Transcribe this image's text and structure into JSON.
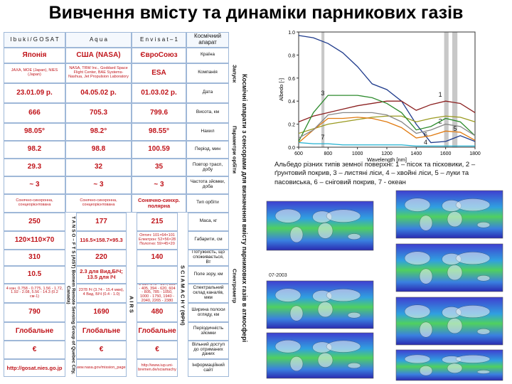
{
  "title": "Вивчення вмісту та динаміки парникових газів",
  "table": {
    "header": [
      "I b u k i / G O S A T",
      "A q u a",
      "E n v i s a t – 1",
      "Космічний апарат"
    ],
    "rows": [
      [
        "Японія",
        "США (NASA)",
        "ЄвроСоюз",
        "Країна"
      ],
      [
        "JAXA, MOE (Japan), NIES (Japan)",
        "NASA, TRW Inc., Goddard Space Flight Center, BAE Systems-Nashua, Jet Propulsion Laboratory",
        "ESA",
        "Компанія"
      ],
      [
        "23.01.09 р.",
        "04.05.02 р.",
        "01.03.02 р.",
        "Дата"
      ],
      [
        "666",
        "705.3",
        "799.6",
        "Висота, км"
      ],
      [
        "98.05°",
        "98.2°",
        "98.55°",
        "Нахил"
      ],
      [
        "98.2",
        "98.8",
        "100.59",
        "Період, мин"
      ],
      [
        "29.3",
        "32",
        "35",
        "Повтор трасп, добу"
      ],
      [
        "~ 3",
        "~ 3",
        "~ 3",
        "Частота зйомки, доба"
      ],
      [
        "Сонячно-синхронна, сонцеорієнтована",
        "Сонячно-синхронна, сонцеорієнтована",
        "Сонячно-синхр. полярна",
        "Тип орбіти"
      ],
      [
        "250",
        "177",
        "215",
        "Маса, кг"
      ],
      [
        "120×110×70",
        "116.5×158.7×95.3",
        "Оптич: 101×64×101 Електрон: 52×56×28 Полотно: 59×45×20",
        "Габарити, см"
      ],
      [
        "310",
        "220",
        "140",
        "Потужність, що споживається, Вт"
      ],
      [
        "10.5",
        "2.3 для Вид,БІЧ; 13.5 для ІЧ",
        "",
        "Поле зору, км"
      ],
      [
        "4 кан. 0.758 - 0.775, 1.56 - 1.72, 1.92 - 2.08, 5.56 - 14.3 (0.2 см-1)",
        "2378 ІЧ (3.74 - 15.4 мкм), 4 Вид, БІЧ (0.4 - 1.0)",
        "8 кан. 240 - 314, 309 - 405, 394 - 620, 604 - 805, 785 - 1050, 1000 - 1750, 1940 - 2040, 2265 - 2380",
        "Спектральний склад каналів, мкм"
      ],
      [
        "790",
        "1690",
        "480",
        "Ширина полоси огляду, км"
      ],
      [
        "Глобальне",
        "Глобальне",
        "Глобальне",
        "Періодичність зйомки"
      ],
      [
        "€",
        "€",
        "€",
        "Вільний доступ до отриманих даних"
      ],
      [
        "http://gosat.nies.go.jp",
        "http://www.nasa.gov/mission_pages/aqua",
        "http://www.iup.uni-bremen.de/sciamachy",
        "Інформаційний сайт"
      ]
    ]
  },
  "side_labels": {
    "main": "Космічні апарати з сенсорами для визначення вмісту парникових газів в атмосфері",
    "launch": "Запуск",
    "orbit": "Параметри орбіти",
    "spectrometer": "Спектрометр"
  },
  "instruments": [
    "T A N S O – F T S (AIST) Bomem Remote Sensing Group of Quebec City, Canada)",
    "A I R S",
    "S C I A M A C H Y (ФРН)"
  ],
  "chart_data": {
    "type": "line",
    "xlabel": "Wavelength [nm]",
    "ylabel": "Albedo [-]",
    "xlim": [
      600,
      1800
    ],
    "ylim": [
      0,
      1
    ],
    "xticks": [
      600,
      800,
      1000,
      1200,
      1400,
      1600,
      1800
    ],
    "yticks": [
      {
        "value": 0,
        "label": "0.0"
      },
      {
        "value": 0.2,
        "label": "0.2"
      },
      {
        "value": 0.4,
        "label": "0.4"
      },
      {
        "value": 0.6,
        "label": "0.6"
      },
      {
        "value": 0.8,
        "label": "0.8"
      },
      {
        "value": 1,
        "label": "1.0"
      }
    ],
    "bands": [
      [
        755,
        775
      ],
      [
        1590,
        1620
      ],
      [
        1645,
        1680
      ]
    ],
    "x": [
      600,
      700,
      800,
      900,
      1000,
      1100,
      1200,
      1300,
      1400,
      1500,
      1600,
      1700,
      1800
    ],
    "series": [
      {
        "name": "6",
        "color": "#1f3b8c",
        "values": [
          0.97,
          0.95,
          0.9,
          0.82,
          0.7,
          0.55,
          0.5,
          0.4,
          0.2,
          0.04,
          0.05,
          0.1,
          0.05
        ]
      },
      {
        "name": "1",
        "color": "#8b2020",
        "values": [
          0.22,
          0.27,
          0.3,
          0.33,
          0.36,
          0.38,
          0.4,
          0.4,
          0.32,
          0.37,
          0.4,
          0.38,
          0.3
        ]
      },
      {
        "name": "2",
        "color": "#9a9a20",
        "values": [
          0.12,
          0.16,
          0.2,
          0.22,
          0.24,
          0.26,
          0.27,
          0.27,
          0.22,
          0.25,
          0.27,
          0.26,
          0.22
        ]
      },
      {
        "name": "3",
        "color": "#2e8b2e",
        "values": [
          0.05,
          0.3,
          0.45,
          0.45,
          0.45,
          0.43,
          0.38,
          0.3,
          0.15,
          0.18,
          0.25,
          0.22,
          0.1
        ]
      },
      {
        "name": "4",
        "color": "#e07a10",
        "values": [
          0.04,
          0.15,
          0.25,
          0.25,
          0.26,
          0.25,
          0.22,
          0.17,
          0.08,
          0.1,
          0.14,
          0.13,
          0.06
        ]
      },
      {
        "name": "5",
        "color": "#888888",
        "values": [
          0.08,
          0.15,
          0.28,
          0.3,
          0.3,
          0.3,
          0.28,
          0.22,
          0.12,
          0.15,
          0.2,
          0.18,
          0.1
        ]
      },
      {
        "name": "7",
        "color": "#20b0d0",
        "values": [
          0.04,
          0.03,
          0.03,
          0.02,
          0.02,
          0.02,
          0.02,
          0.02,
          0.01,
          0.01,
          0.01,
          0.01,
          0.01
        ]
      }
    ]
  },
  "caption": "Альбедо різних типів земної поверхні: 1 – пісок та пісковики, 2 – ґрунтовий покрив, 3 – листяні ліси, 4 – хвойні ліси, 5 – луки та пасовиська, 6 – сніговий покрив, 7 - океан",
  "maps": {
    "labels": [
      "07-2003"
    ]
  }
}
